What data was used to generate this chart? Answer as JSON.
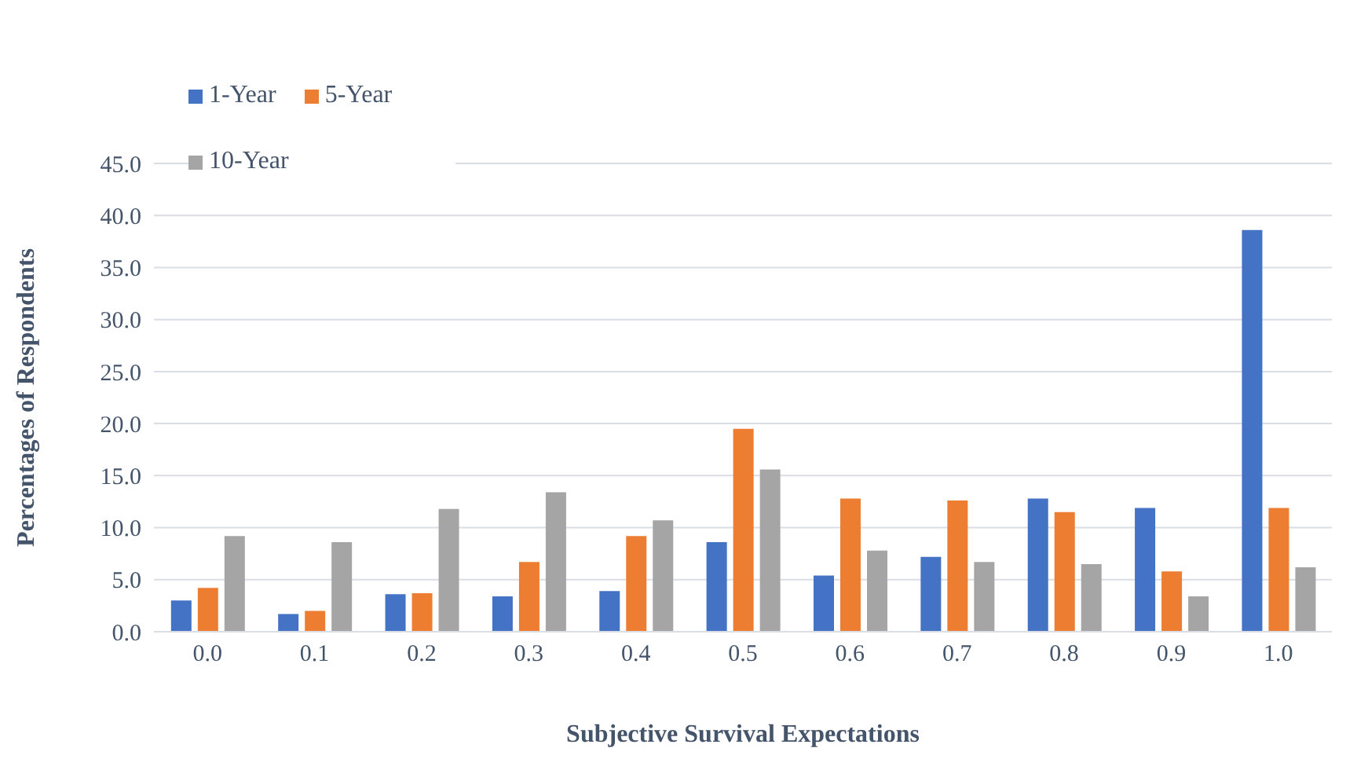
{
  "chart_data": {
    "type": "bar",
    "xlabel": "Subjective Survival Expectations",
    "ylabel": "Percentages of Respondents",
    "categories": [
      "0.0",
      "0.1",
      "0.2",
      "0.3",
      "0.4",
      "0.5",
      "0.6",
      "0.7",
      "0.8",
      "0.9",
      "1.0"
    ],
    "series": [
      {
        "name": "1-Year",
        "color": "#4472c4",
        "values": [
          3.0,
          1.7,
          3.6,
          3.4,
          3.9,
          8.6,
          5.4,
          7.2,
          12.8,
          11.9,
          38.6
        ]
      },
      {
        "name": "5-Year",
        "color": "#ed7d31",
        "values": [
          4.2,
          2.0,
          3.7,
          6.7,
          9.2,
          19.5,
          12.8,
          12.6,
          11.5,
          5.8,
          11.9
        ]
      },
      {
        "name": "10-Year",
        "color": "#a5a5a5",
        "values": [
          9.2,
          8.6,
          11.8,
          13.4,
          10.7,
          15.6,
          7.8,
          6.7,
          6.5,
          3.4,
          6.2
        ]
      }
    ],
    "ylim": [
      0,
      45
    ],
    "yticks": [
      {
        "value": 0,
        "label": "0.0"
      },
      {
        "value": 5,
        "label": "5.0"
      },
      {
        "value": 10,
        "label": "10.0"
      },
      {
        "value": 15,
        "label": "15.0"
      },
      {
        "value": 20,
        "label": "20.0"
      },
      {
        "value": 25,
        "label": "25.0"
      },
      {
        "value": 30,
        "label": "30.0"
      },
      {
        "value": 35,
        "label": "35.0"
      },
      {
        "value": 40,
        "label": "40.0"
      },
      {
        "value": 45,
        "label": "45.0"
      }
    ],
    "grid": "y",
    "legend": "top left"
  }
}
